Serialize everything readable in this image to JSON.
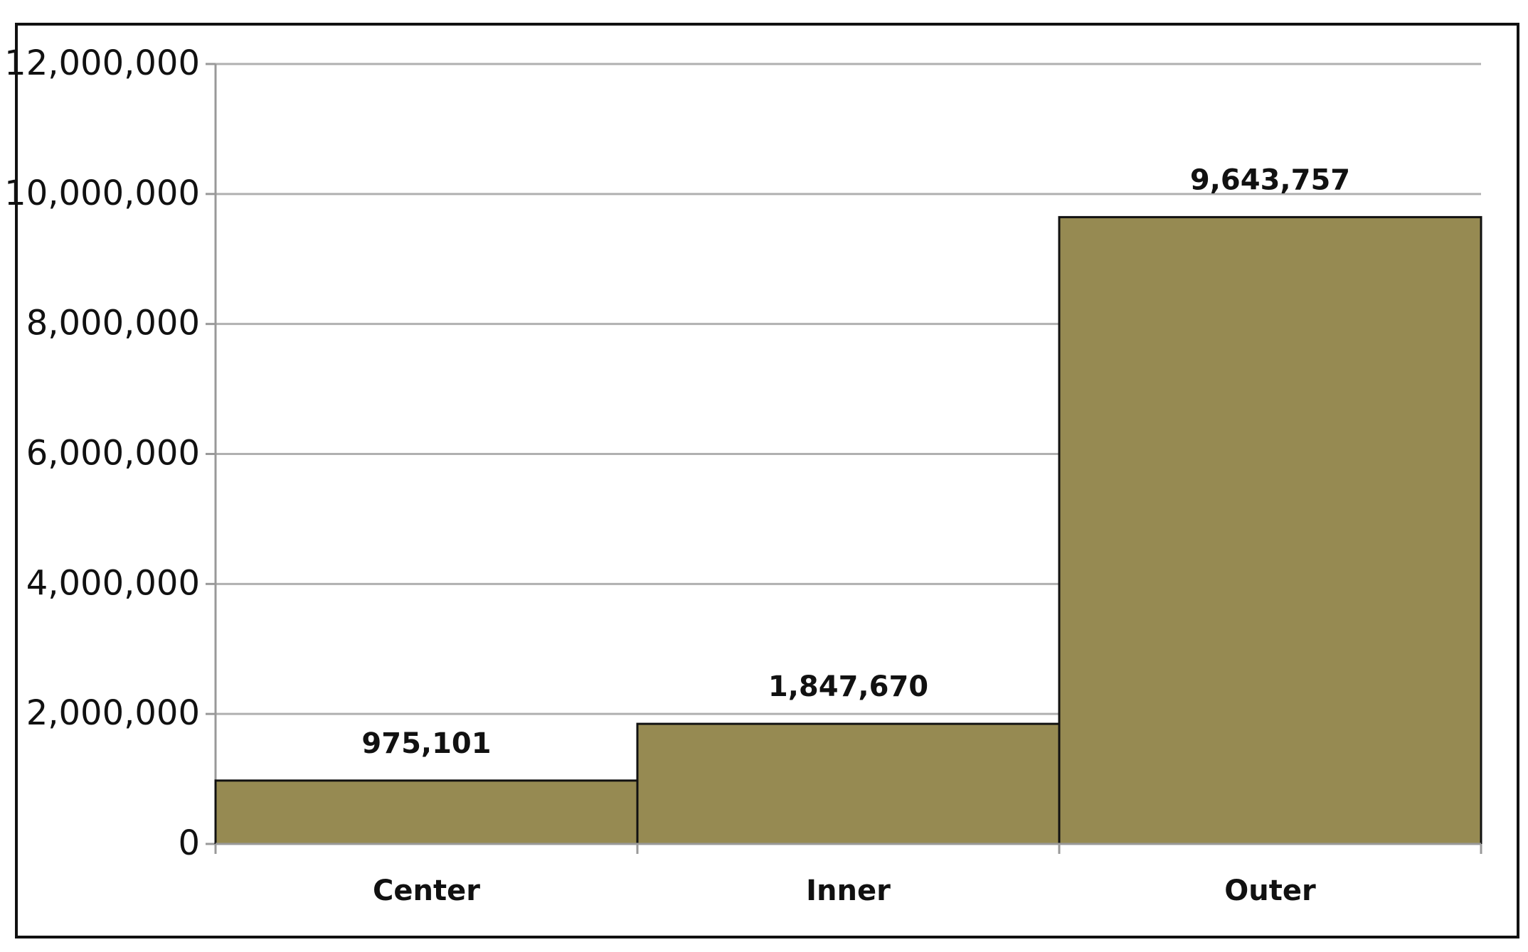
{
  "chart_data": {
    "type": "bar",
    "categories": [
      "Center",
      "Inner",
      "Outer"
    ],
    "values": [
      975101,
      1847670,
      9643757
    ],
    "value_labels": [
      "975,101",
      "1,847,670",
      "9,643,757"
    ],
    "color": "#968a52",
    "ylim": [
      0,
      12000000
    ],
    "yticks": [
      0,
      {
        "value": 2000000,
        "label": "2,000,000"
      },
      {
        "value": 4000000,
        "label": "4,000,000"
      },
      {
        "value": 6000000,
        "label": "6,000,000"
      },
      {
        "value": 8000000,
        "label": "8,000,000"
      },
      {
        "value": 10000000,
        "label": "10,000,000"
      },
      {
        "value": 12000000,
        "label": "12,000,000"
      }
    ],
    "grid": true
  }
}
